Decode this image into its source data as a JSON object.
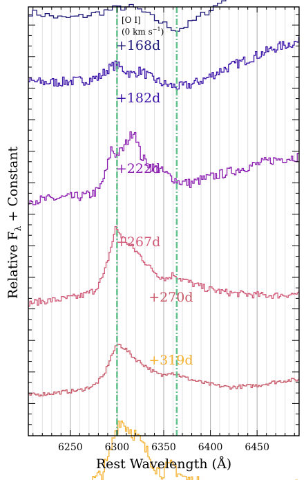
{
  "chart_data": {
    "type": "line",
    "xlabel": "Rest Wavelength (Å)",
    "ylabel": "Relative F",
    "ylabel_sub": "λ",
    "ylabel_tail": " + Constant",
    "xlim": [
      6205,
      6495
    ],
    "x_ticks": [
      6250,
      6300,
      6350,
      6400,
      6450
    ],
    "x_tick_labels": [
      "6250",
      "6300",
      "6350",
      "6400",
      "6450"
    ],
    "vertical_lines": [
      6300,
      6364
    ],
    "line_color": "#66c28f",
    "annotation": {
      "line1": "[O I]",
      "line2_main": "(0 km s",
      "line2_sup": "−1",
      "line2_end": ")"
    },
    "series": [
      {
        "name": "+168d",
        "color": "#1f1a7a",
        "label_x": 6290,
        "label_row": 0,
        "points": [
          [
            6205,
            0.62
          ],
          [
            6220,
            0.6
          ],
          [
            6240,
            0.56
          ],
          [
            6260,
            0.58
          ],
          [
            6280,
            0.62
          ],
          [
            6295,
            0.66
          ],
          [
            6310,
            0.68
          ],
          [
            6320,
            0.66
          ],
          [
            6330,
            0.6
          ],
          [
            6345,
            0.52
          ],
          [
            6355,
            0.47
          ],
          [
            6363,
            0.44
          ],
          [
            6375,
            0.5
          ],
          [
            6390,
            0.6
          ],
          [
            6405,
            0.7
          ],
          [
            6420,
            0.8
          ],
          [
            6435,
            0.85
          ],
          [
            6450,
            0.87
          ],
          [
            6470,
            0.9
          ],
          [
            6485,
            0.93
          ],
          [
            6495,
            0.95
          ]
        ]
      },
      {
        "name": "+182d",
        "color": "#3a12a8",
        "label_x": 6290,
        "label_row": 1,
        "points": [
          [
            6205,
            0.41
          ],
          [
            6220,
            0.4
          ],
          [
            6235,
            0.4
          ],
          [
            6250,
            0.41
          ],
          [
            6265,
            0.42
          ],
          [
            6280,
            0.45
          ],
          [
            6290,
            0.54
          ],
          [
            6298,
            0.58
          ],
          [
            6305,
            0.54
          ],
          [
            6315,
            0.48
          ],
          [
            6325,
            0.52
          ],
          [
            6335,
            0.45
          ],
          [
            6350,
            0.38
          ],
          [
            6365,
            0.35
          ],
          [
            6380,
            0.38
          ],
          [
            6395,
            0.44
          ],
          [
            6410,
            0.52
          ],
          [
            6425,
            0.58
          ],
          [
            6440,
            0.64
          ],
          [
            6455,
            0.7
          ],
          [
            6470,
            0.76
          ],
          [
            6485,
            0.8
          ],
          [
            6495,
            0.82
          ]
        ]
      },
      {
        "name": "+222d",
        "color": "#8c1fb0",
        "label_x": 6290,
        "label_row": 2,
        "points": [
          [
            6205,
            0.05
          ],
          [
            6220,
            0.05
          ],
          [
            6240,
            0.07
          ],
          [
            6255,
            0.08
          ],
          [
            6270,
            0.1
          ],
          [
            6280,
            0.15
          ],
          [
            6288,
            0.35
          ],
          [
            6293,
            0.58
          ],
          [
            6298,
            0.52
          ],
          [
            6305,
            0.56
          ],
          [
            6310,
            0.65
          ],
          [
            6318,
            0.78
          ],
          [
            6325,
            0.5
          ],
          [
            6335,
            0.4
          ],
          [
            6345,
            0.36
          ],
          [
            6355,
            0.3
          ],
          [
            6365,
            0.24
          ],
          [
            6378,
            0.22
          ],
          [
            6390,
            0.26
          ],
          [
            6405,
            0.3
          ],
          [
            6420,
            0.34
          ],
          [
            6435,
            0.38
          ],
          [
            6450,
            0.42
          ],
          [
            6465,
            0.46
          ],
          [
            6480,
            0.48
          ],
          [
            6495,
            0.5
          ]
        ]
      },
      {
        "name": "+267d",
        "color": "#d05a78",
        "label_x": 6290,
        "label_row": 3,
        "points": [
          [
            6205,
            -0.33
          ],
          [
            6220,
            -0.31
          ],
          [
            6240,
            -0.29
          ],
          [
            6260,
            -0.26
          ],
          [
            6275,
            -0.2
          ],
          [
            6285,
            -0.05
          ],
          [
            6293,
            0.25
          ],
          [
            6298,
            0.45
          ],
          [
            6305,
            0.35
          ],
          [
            6315,
            0.25
          ],
          [
            6325,
            0.15
          ],
          [
            6335,
            0.03
          ],
          [
            6345,
            -0.05
          ],
          [
            6353,
            -0.08
          ],
          [
            6360,
            -0.03
          ],
          [
            6368,
            -0.08
          ],
          [
            6380,
            -0.13
          ],
          [
            6395,
            -0.18
          ],
          [
            6410,
            -0.21
          ],
          [
            6425,
            -0.23
          ],
          [
            6440,
            -0.24
          ],
          [
            6455,
            -0.25
          ],
          [
            6470,
            -0.25
          ],
          [
            6485,
            -0.24
          ],
          [
            6495,
            -0.23
          ]
        ]
      },
      {
        "name": "+270d",
        "color": "#c85a6a",
        "label_x": 6325,
        "label_row": 4,
        "points": [
          [
            6205,
            -0.58
          ],
          [
            6220,
            -0.57
          ],
          [
            6240,
            -0.55
          ],
          [
            6260,
            -0.53
          ],
          [
            6275,
            -0.48
          ],
          [
            6285,
            -0.38
          ],
          [
            6293,
            -0.18
          ],
          [
            6300,
            -0.05
          ],
          [
            6308,
            -0.1
          ],
          [
            6318,
            -0.2
          ],
          [
            6330,
            -0.28
          ],
          [
            6340,
            -0.35
          ],
          [
            6348,
            -0.38
          ],
          [
            6355,
            -0.34
          ],
          [
            6362,
            -0.36
          ],
          [
            6375,
            -0.41
          ],
          [
            6390,
            -0.45
          ],
          [
            6405,
            -0.48
          ],
          [
            6420,
            -0.5
          ],
          [
            6435,
            -0.49
          ],
          [
            6450,
            -0.48
          ],
          [
            6465,
            -0.45
          ],
          [
            6480,
            -0.43
          ],
          [
            6495,
            -0.42
          ]
        ]
      },
      {
        "name": "+319d",
        "color": "#f5b02e",
        "label_x": 6325,
        "label_row": 5,
        "points": [
          [
            6205,
            -1.0
          ],
          [
            6220,
            -0.98
          ],
          [
            6235,
            -0.99
          ],
          [
            6250,
            -0.97
          ],
          [
            6262,
            -0.93
          ],
          [
            6272,
            -0.85
          ],
          [
            6282,
            -0.78
          ],
          [
            6290,
            -0.62
          ],
          [
            6296,
            -0.38
          ],
          [
            6302,
            -0.2
          ],
          [
            6310,
            -0.28
          ],
          [
            6318,
            -0.35
          ],
          [
            6325,
            -0.45
          ],
          [
            6335,
            -0.6
          ],
          [
            6345,
            -0.75
          ],
          [
            6352,
            -0.72
          ],
          [
            6360,
            -0.68
          ],
          [
            6368,
            -0.78
          ],
          [
            6378,
            -0.85
          ],
          [
            6390,
            -0.88
          ],
          [
            6405,
            -0.9
          ],
          [
            6420,
            -0.92
          ],
          [
            6435,
            -0.93
          ],
          [
            6450,
            -0.93
          ],
          [
            6465,
            -0.92
          ],
          [
            6480,
            -0.91
          ],
          [
            6495,
            -0.9
          ]
        ]
      }
    ]
  }
}
